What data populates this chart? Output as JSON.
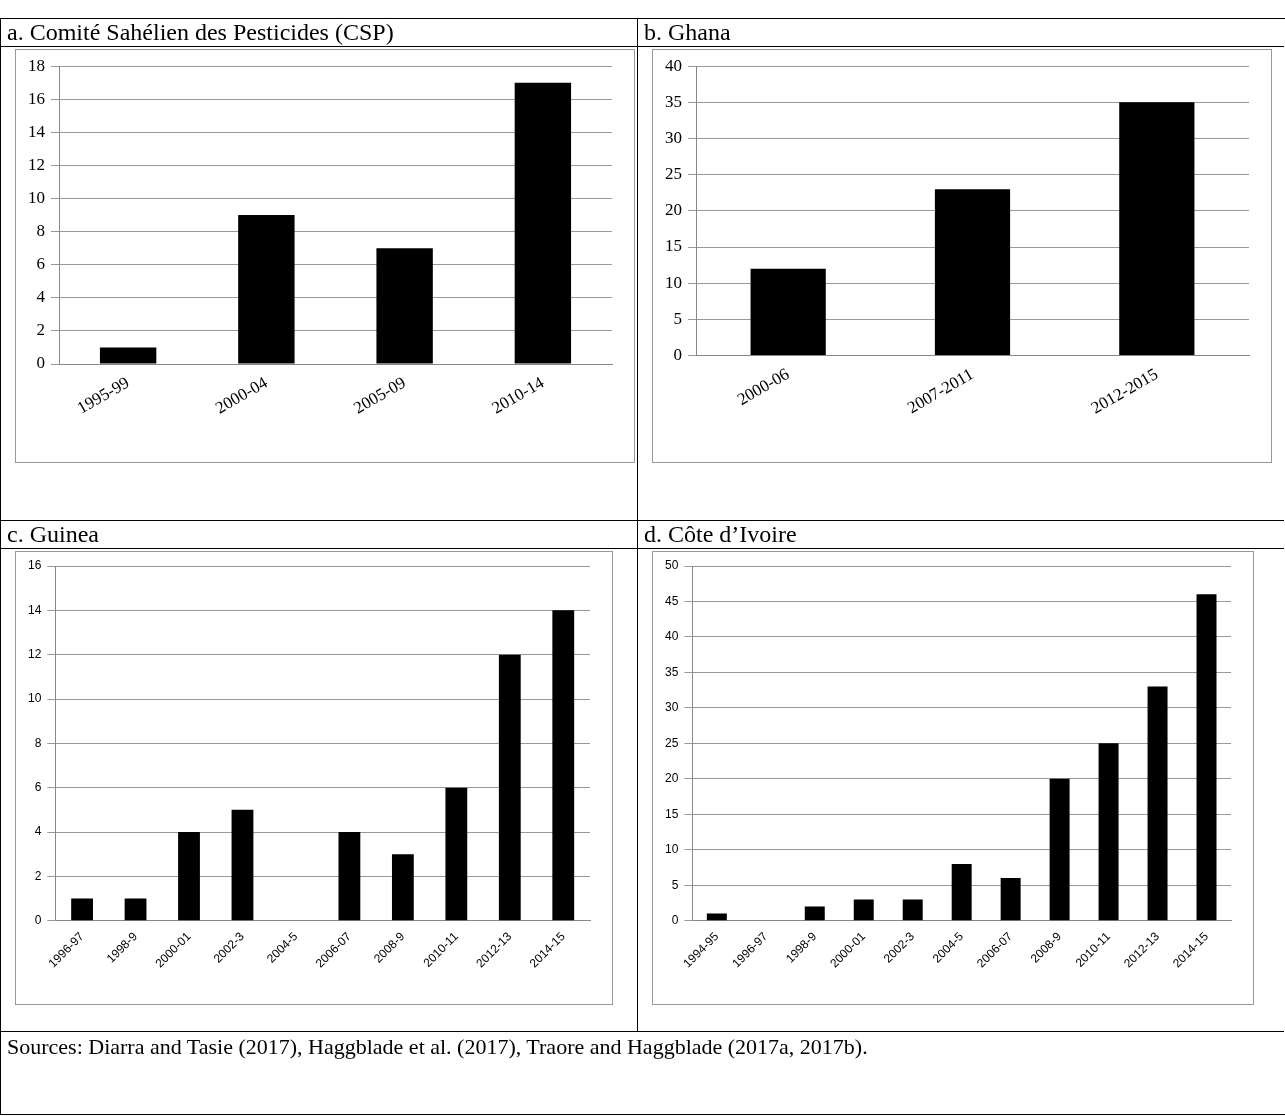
{
  "chart_data": [
    {
      "type": "bar",
      "title": "a. Comité Sahélien des Pesticides (CSP)",
      "categories": [
        "1995-99",
        "2000-04",
        "2005-09",
        "2010-14"
      ],
      "values": [
        1,
        9,
        7,
        17
      ],
      "color": "#000000",
      "ylim": [
        0,
        18
      ],
      "yticks": [
        0,
        2,
        4,
        6,
        8,
        10,
        12,
        14,
        16,
        18
      ],
      "grid": "y"
    },
    {
      "type": "bar",
      "title": "b. Ghana",
      "categories": [
        "2000-06",
        "2007-2011",
        "2012-2015"
      ],
      "values": [
        12,
        23,
        35
      ],
      "color": "#000000",
      "ylim": [
        0,
        40
      ],
      "yticks": [
        0,
        5,
        10,
        15,
        20,
        25,
        30,
        35,
        40
      ],
      "grid": "y"
    },
    {
      "type": "bar",
      "title": "c. Guinea",
      "categories": [
        "1996-97",
        "1998-9",
        "2000-01",
        "2002-3",
        "2004-5",
        "2006-07",
        "2008-9",
        "2010-11",
        "2012-13",
        "2014-15"
      ],
      "values": [
        1,
        1,
        4,
        5,
        0,
        4,
        3,
        6,
        12,
        14
      ],
      "color": "#000000",
      "ylim": [
        0,
        16
      ],
      "yticks": [
        0,
        2,
        4,
        6,
        8,
        10,
        12,
        14,
        16
      ],
      "grid": "y"
    },
    {
      "type": "bar",
      "title": "d. Côte d’Ivoire",
      "categories": [
        "1994-95",
        "1996-97",
        "1998-9",
        "2000-01",
        "2002-3",
        "2004-5",
        "2006-07",
        "2008-9",
        "2010-11",
        "2012-13",
        "2014-15"
      ],
      "values": [
        1,
        0,
        2,
        3,
        3,
        8,
        6,
        20,
        25,
        33,
        46
      ],
      "color": "#000000",
      "ylim": [
        0,
        50
      ],
      "yticks": [
        0,
        5,
        10,
        15,
        20,
        25,
        30,
        35,
        40,
        45,
        50
      ],
      "grid": "y",
      "annotations": [
        "Sources: Diarra and Tasie (2017), Haggblade et al. (2017), Traore and Haggblade (2017a, 2017b)."
      ]
    }
  ]
}
